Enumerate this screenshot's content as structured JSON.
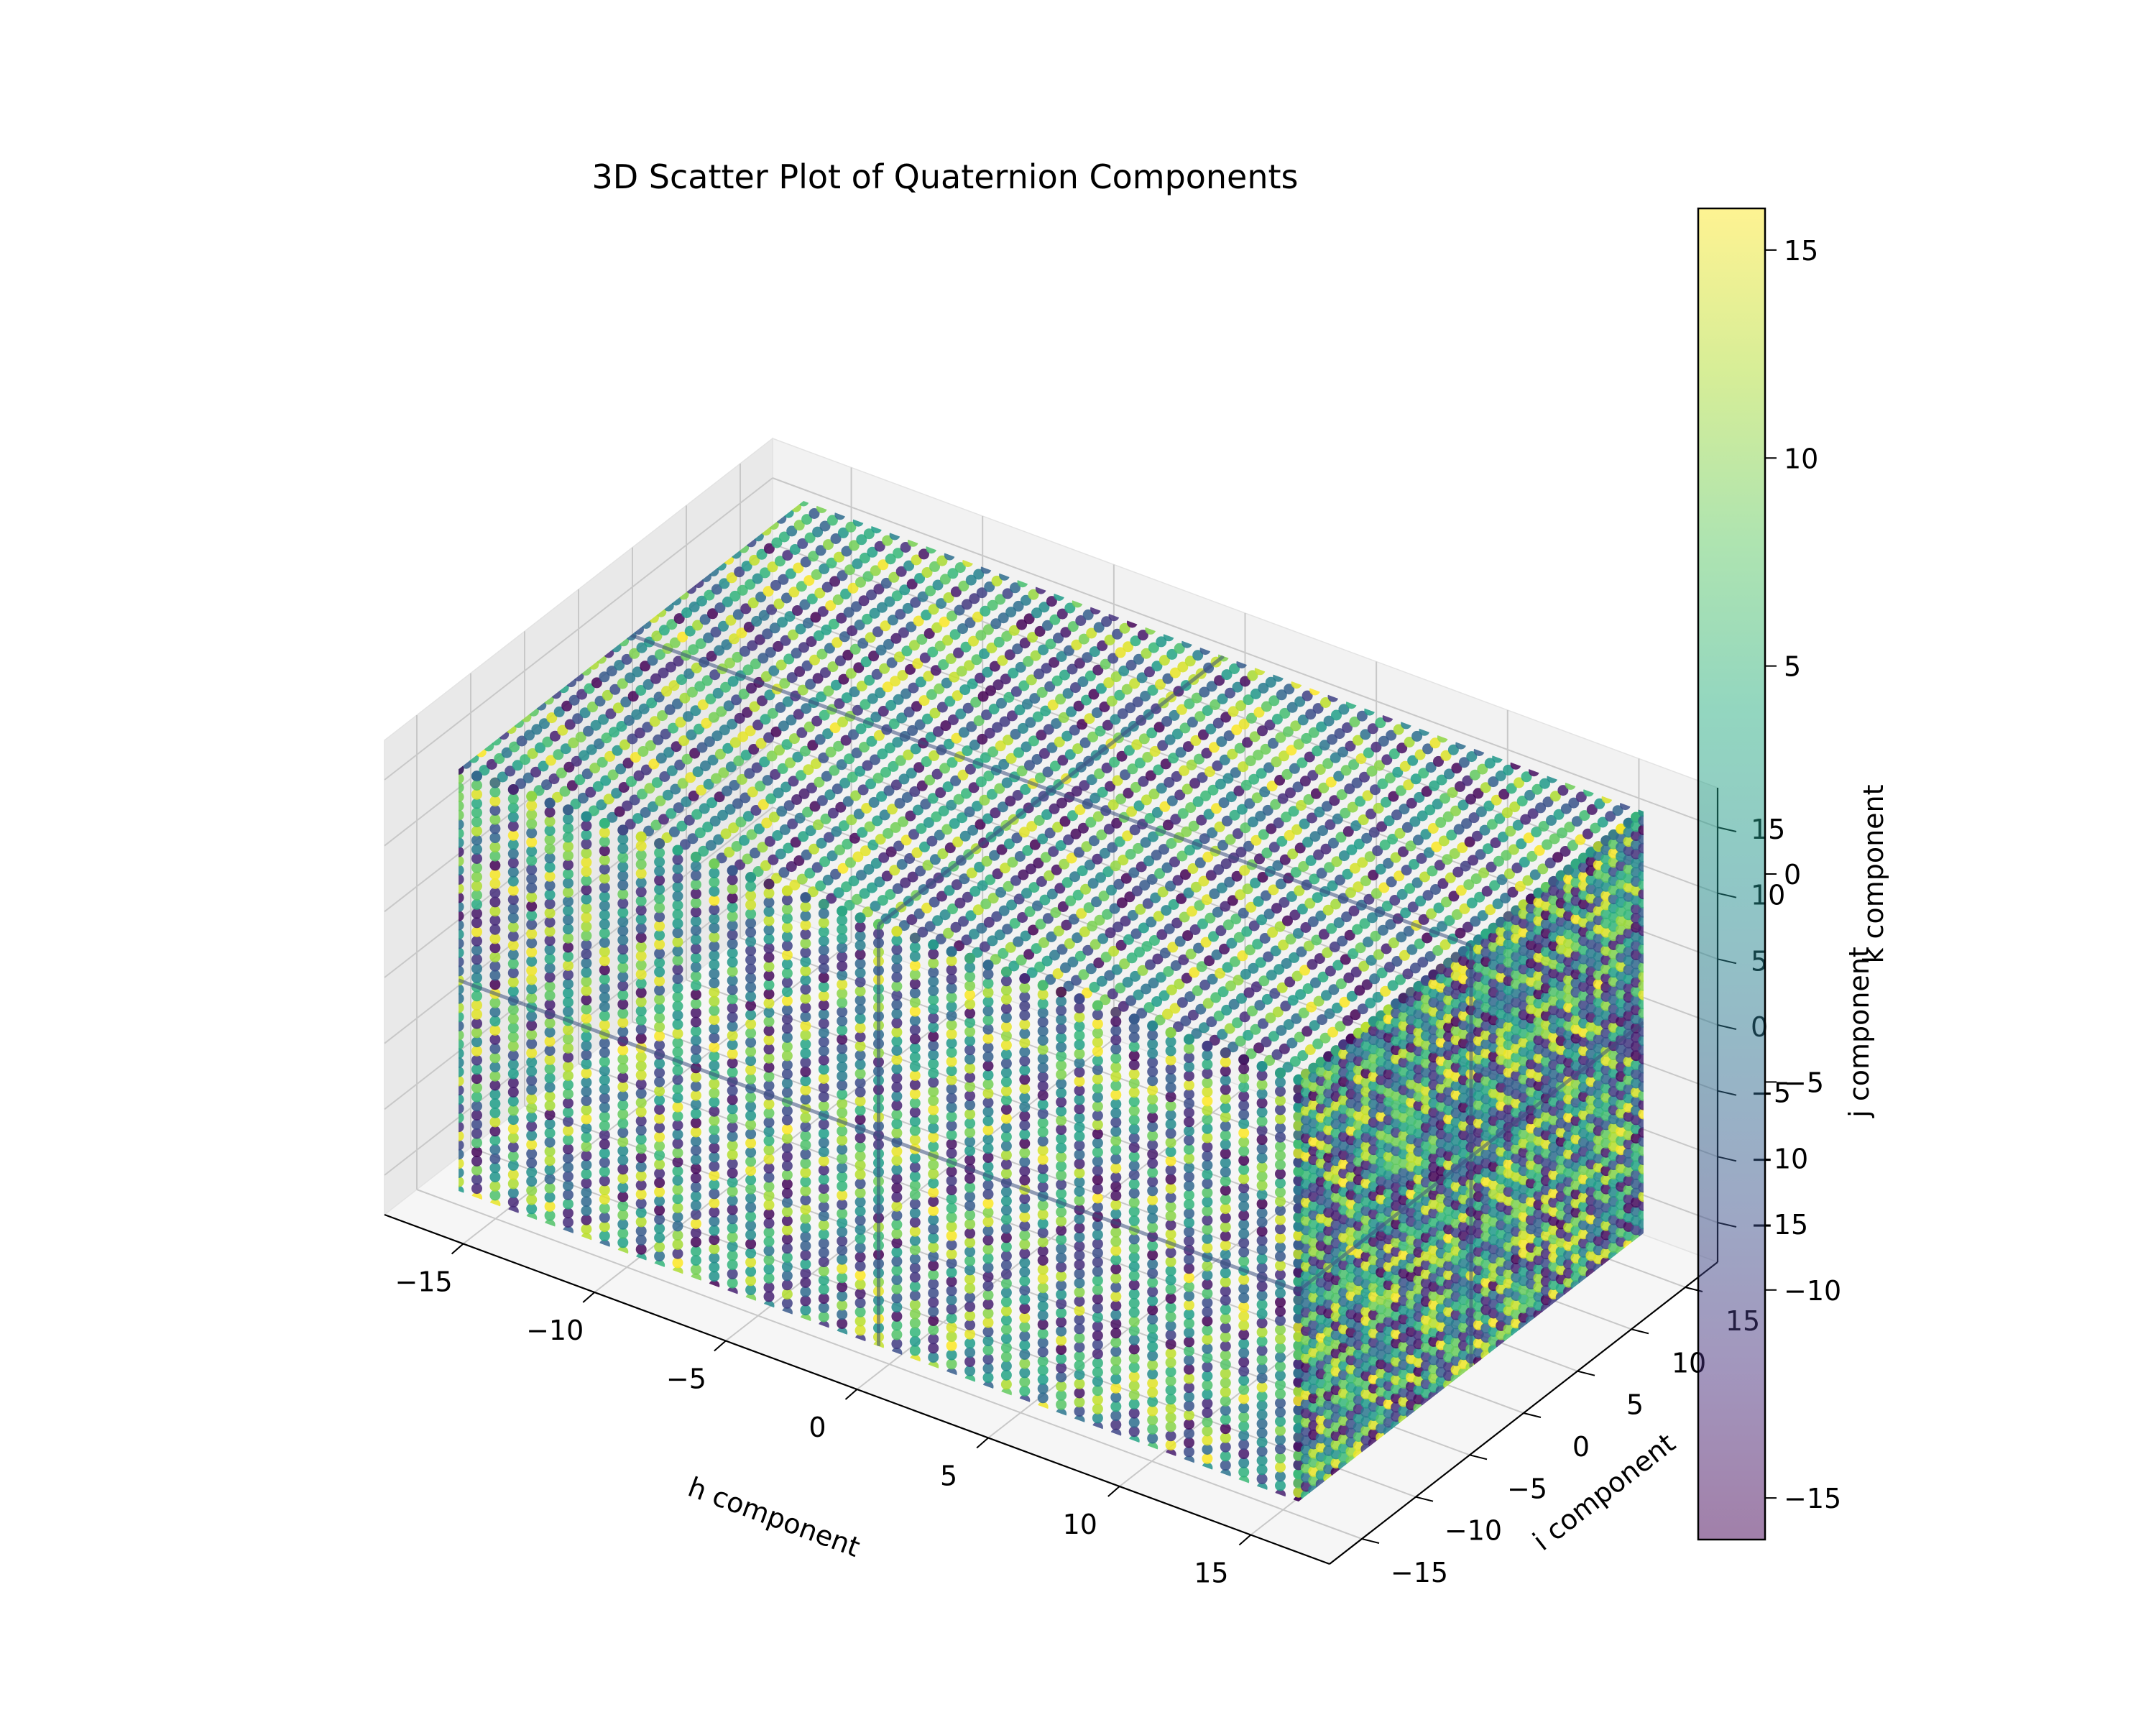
{
  "chart_data": {
    "type": "scatter",
    "title": "3D Scatter Plot of Quaternion Components",
    "xlabel": "h component",
    "ylabel": "i component",
    "zlabel": "j component",
    "xlim": [
      -18,
      18
    ],
    "ylim": [
      -18,
      18
    ],
    "zlim": [
      -18,
      18
    ],
    "x_ticks": [
      -15,
      -10,
      -5,
      0,
      5,
      10,
      15
    ],
    "y_ticks": [
      -15,
      -10,
      -5,
      0,
      5,
      10,
      15
    ],
    "z_ticks": [
      -15,
      -10,
      -5,
      0,
      5,
      10,
      15
    ],
    "x_tick_labels": [
      "−15",
      "−10",
      "−5",
      "0",
      "5",
      "10",
      "15"
    ],
    "y_tick_labels": [
      "−15",
      "−10",
      "−5",
      "0",
      "5",
      "10",
      "15"
    ],
    "z_tick_labels": [
      "−15",
      "−10",
      "−5",
      "0",
      "5",
      "10",
      "15"
    ],
    "data_extent": {
      "h": [
        -16,
        16
      ],
      "i": [
        -16,
        16
      ],
      "j": [
        -16,
        16
      ]
    },
    "data_distribution": "dense uniform grid-like cloud filling the cube, with visible seams at h=0, i=0 and j=0",
    "color_variable": "k component",
    "colormap": "viridis",
    "marker_alpha": 0.5,
    "grid": true,
    "colorbar": {
      "label": "k component",
      "range": [
        -16,
        16
      ],
      "ticks": [
        -15,
        -10,
        -5,
        0,
        5,
        10,
        15
      ],
      "tick_labels": [
        "−15",
        "−10",
        "−5",
        "0",
        "5",
        "10",
        "15"
      ],
      "placement": "right"
    }
  }
}
